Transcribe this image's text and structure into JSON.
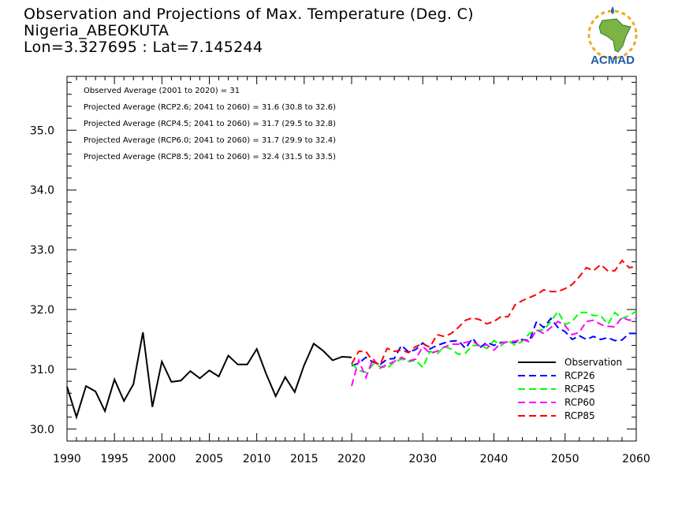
{
  "title": {
    "line1": "Observation and Projections of Max. Temperature (Deg. C)",
    "line2": "Nigeria_ABEOKUTA",
    "line3": "Lon=3.327695 : Lat=7.145244"
  },
  "logo": {
    "text": "ACMAD"
  },
  "chart_data": {
    "type": "line",
    "xlim": [
      1990,
      2060
    ],
    "ylim": [
      29.8,
      35.9
    ],
    "xaxis_breaks": [
      {
        "from": 1990,
        "to": 2020,
        "tick_step": 5
      },
      {
        "from": 2020,
        "to": 2060,
        "tick_step": 10
      }
    ],
    "x_ticks": [
      1990,
      1995,
      2000,
      2005,
      2010,
      2015,
      2020,
      2030,
      2040,
      2050,
      2060
    ],
    "x_tick_labels": [
      "1990",
      "1995",
      "2000",
      "2005",
      "2010",
      "2015",
      "2020",
      "2030",
      "2040",
      "2050",
      "2060"
    ],
    "y_ticks": [
      30.0,
      31.0,
      32.0,
      33.0,
      34.0,
      35.0
    ],
    "y_tick_labels": [
      "30.0",
      "31.0",
      "32.0",
      "33.0",
      "34.0",
      "35.0"
    ],
    "grid": false,
    "legend_position": "bottom-right",
    "annotations": [
      "Observed Average (2001 to 2020) = 31",
      "Projected Average (RCP2.6; 2041 to 2060) = 31.6 (30.8 to 32.6)",
      "Projected Average (RCP4.5; 2041 to 2060) = 31.7 (29.5 to 32.8)",
      "Projected Average (RCP6.0; 2041 to 2060) = 31.7 (29.9 to 32.4)",
      "Projected Average (RCP8.5; 2041 to 2060) = 32.4 (31.5 to 33.5)"
    ],
    "series": [
      {
        "name": "Observation",
        "color": "#000000",
        "dash": "solid",
        "x": [
          1990,
          1991,
          1992,
          1993,
          1994,
          1995,
          1996,
          1997,
          1998,
          1999,
          2000,
          2001,
          2002,
          2003,
          2004,
          2005,
          2006,
          2007,
          2008,
          2009,
          2010,
          2011,
          2012,
          2013,
          2014,
          2015,
          2016,
          2017,
          2018,
          2019,
          2020
        ],
        "y": [
          30.71,
          30.2,
          30.72,
          30.63,
          30.3,
          30.83,
          30.47,
          30.75,
          31.62,
          30.37,
          31.13,
          30.79,
          30.81,
          30.97,
          30.85,
          30.98,
          30.88,
          31.23,
          31.08,
          31.08,
          31.34,
          30.92,
          30.55,
          30.87,
          30.62,
          31.07,
          31.43,
          31.31,
          31.15,
          31.21,
          31.2
        ]
      },
      {
        "name": "RCP26",
        "color": "#0000ff",
        "dash": "dashed",
        "x": [
          2020,
          2021,
          2022,
          2023,
          2024,
          2025,
          2026,
          2027,
          2028,
          2029,
          2030,
          2031,
          2032,
          2033,
          2034,
          2035,
          2036,
          2037,
          2038,
          2039,
          2040,
          2041,
          2042,
          2043,
          2044,
          2045,
          2046,
          2047,
          2048,
          2049,
          2050,
          2051,
          2052,
          2053,
          2054,
          2055,
          2056,
          2057,
          2058,
          2059,
          2060
        ],
        "y": [
          31.06,
          31.1,
          31.2,
          31.12,
          31.08,
          31.17,
          31.18,
          31.4,
          31.29,
          31.33,
          31.44,
          31.34,
          31.4,
          31.44,
          31.47,
          31.48,
          31.35,
          31.52,
          31.36,
          31.45,
          31.4,
          31.45,
          31.45,
          31.45,
          31.5,
          31.48,
          31.8,
          31.7,
          31.85,
          31.7,
          31.63,
          31.5,
          31.56,
          31.5,
          31.55,
          31.5,
          31.53,
          31.48,
          31.49,
          31.6,
          31.6
        ]
      },
      {
        "name": "RCP45",
        "color": "#00ff00",
        "dash": "dashed",
        "x": [
          2020,
          2021,
          2022,
          2023,
          2024,
          2025,
          2026,
          2027,
          2028,
          2029,
          2030,
          2031,
          2032,
          2033,
          2034,
          2035,
          2036,
          2037,
          2038,
          2039,
          2040,
          2041,
          2042,
          2043,
          2044,
          2045,
          2046,
          2047,
          2048,
          2049,
          2050,
          2051,
          2052,
          2053,
          2054,
          2055,
          2056,
          2057,
          2058,
          2059,
          2060
        ],
        "y": [
          31.1,
          30.98,
          30.95,
          31.08,
          31.05,
          31.02,
          31.12,
          31.17,
          31.13,
          31.15,
          31.03,
          31.3,
          31.25,
          31.38,
          31.34,
          31.25,
          31.27,
          31.4,
          31.4,
          31.35,
          31.48,
          31.4,
          31.48,
          31.4,
          31.47,
          31.6,
          31.65,
          31.66,
          31.8,
          31.97,
          31.75,
          31.8,
          31.95,
          31.95,
          31.9,
          31.9,
          31.75,
          31.95,
          31.85,
          31.9,
          31.97
        ]
      },
      {
        "name": "RCP60",
        "color": "#ff00ff",
        "dash": "dashed",
        "x": [
          2020,
          2021,
          2022,
          2023,
          2024,
          2025,
          2026,
          2027,
          2028,
          2029,
          2030,
          2031,
          2032,
          2033,
          2034,
          2035,
          2036,
          2037,
          2038,
          2039,
          2040,
          2041,
          2042,
          2043,
          2044,
          2045,
          2046,
          2047,
          2048,
          2049,
          2050,
          2051,
          2052,
          2053,
          2054,
          2055,
          2056,
          2057,
          2058,
          2059,
          2060
        ],
        "y": [
          30.72,
          31.15,
          30.86,
          31.18,
          31.02,
          31.08,
          31.13,
          31.2,
          31.14,
          31.17,
          31.38,
          31.27,
          31.3,
          31.37,
          31.42,
          31.42,
          31.45,
          31.47,
          31.39,
          31.41,
          31.32,
          31.44,
          31.46,
          31.47,
          31.5,
          31.46,
          31.66,
          31.6,
          31.7,
          31.8,
          31.73,
          31.58,
          31.62,
          31.8,
          31.82,
          31.75,
          31.72,
          31.71,
          31.87,
          31.82,
          31.85
        ]
      },
      {
        "name": "RCP85",
        "color": "#ff0000",
        "dash": "dashed",
        "x": [
          2020,
          2021,
          2022,
          2023,
          2024,
          2025,
          2026,
          2027,
          2028,
          2029,
          2030,
          2031,
          2032,
          2033,
          2034,
          2035,
          2036,
          2037,
          2038,
          2039,
          2040,
          2041,
          2042,
          2043,
          2044,
          2045,
          2046,
          2047,
          2048,
          2049,
          2050,
          2051,
          2052,
          2053,
          2054,
          2055,
          2056,
          2057,
          2058,
          2059,
          2060
        ],
        "y": [
          31.09,
          31.3,
          31.3,
          31.13,
          31.08,
          31.35,
          31.3,
          31.32,
          31.28,
          31.38,
          31.43,
          31.37,
          31.58,
          31.55,
          31.6,
          31.7,
          31.82,
          31.86,
          31.83,
          31.76,
          31.8,
          31.88,
          31.88,
          32.08,
          32.15,
          32.2,
          32.25,
          32.33,
          32.3,
          32.3,
          32.35,
          32.42,
          32.55,
          32.7,
          32.65,
          32.75,
          32.65,
          32.65,
          32.82,
          32.7,
          32.72
        ]
      }
    ]
  }
}
